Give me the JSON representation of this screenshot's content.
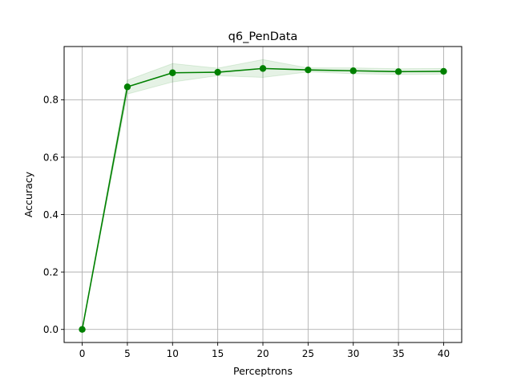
{
  "chart_data": {
    "type": "line",
    "title": "q6_PenData",
    "xlabel": "Perceptrons",
    "ylabel": "Accuracy",
    "x": [
      0,
      5,
      10,
      15,
      20,
      25,
      30,
      35,
      40
    ],
    "series": [
      {
        "values": [
          0.0,
          0.845,
          0.894,
          0.896,
          0.909,
          0.904,
          0.901,
          0.898,
          0.899
        ],
        "band_lower": [
          0.0,
          0.82,
          0.862,
          0.884,
          0.878,
          0.897,
          0.891,
          0.888,
          0.889
        ],
        "band_upper": [
          0.0,
          0.868,
          0.926,
          0.91,
          0.94,
          0.911,
          0.911,
          0.908,
          0.909
        ],
        "color": "#008000",
        "marker": "circle"
      }
    ],
    "x_ticks": [
      0,
      5,
      10,
      15,
      20,
      25,
      30,
      35,
      40
    ],
    "y_ticks": [
      0.0,
      0.2,
      0.4,
      0.6,
      0.8
    ],
    "x_tick_labels": [
      "0",
      "5",
      "10",
      "15",
      "20",
      "25",
      "30",
      "35",
      "40"
    ],
    "y_tick_labels": [
      "0.0",
      "0.2",
      "0.4",
      "0.6",
      "0.8"
    ],
    "xlim": [
      -2,
      42
    ],
    "ylim": [
      -0.0455,
      0.9855
    ],
    "grid": true,
    "legend": "none"
  }
}
